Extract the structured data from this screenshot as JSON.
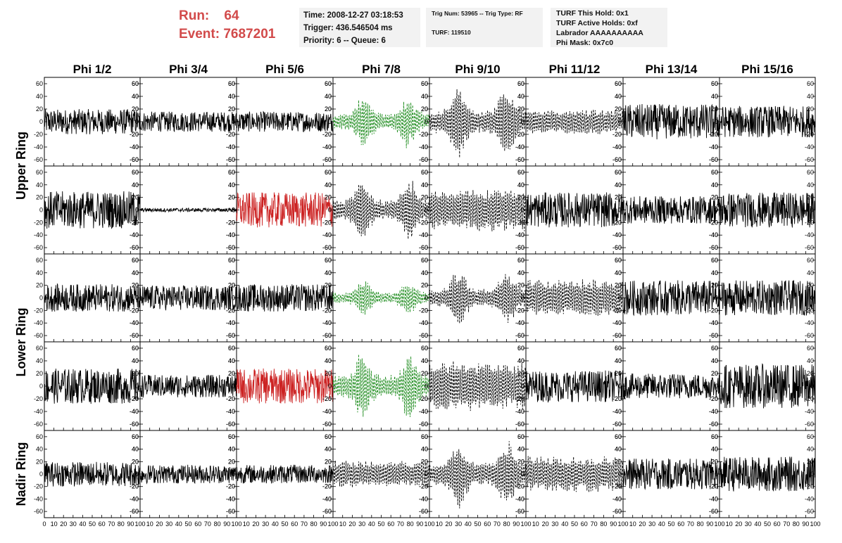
{
  "header": {
    "run_label": "Run:",
    "run_value": "64",
    "event_label": "Event:",
    "event_value": "7687201",
    "time": "Time: 2008-12-27 03:18:53",
    "trigger": "Trigger: 436.546504 ms",
    "priority": "Priority: 6 -- Queue: 6",
    "trig_num": "Trig Num: 53965 -- Trig Type: RF",
    "turf": "TURF: 119510",
    "turf_this_hold": "TURF This Hold: 0x1",
    "turf_active_holds": "TURF Active Holds: 0xf",
    "labrador": "Labrador AAAAAAAAAA",
    "phi_mask": "Phi Mask: 0x7c0"
  },
  "colors": {
    "header_red": "#d24a4a",
    "black_trace": "#000000",
    "red_trace": "#cc2222",
    "green_trace": "#1a8a1a",
    "box_bg": "#f2f2f2"
  },
  "chart_data": {
    "type": "line",
    "columns": [
      "Phi 1/2",
      "Phi 3/4",
      "Phi 5/6",
      "Phi 7/8",
      "Phi 9/10",
      "Phi 11/12",
      "Phi 13/14",
      "Phi 15/16"
    ],
    "row_labels": [
      {
        "label": "Upper Ring",
        "rows": [
          0,
          1
        ]
      },
      {
        "label": "Lower Ring",
        "rows": [
          2,
          3
        ]
      },
      {
        "label": "Nadir Ring",
        "rows": [
          4
        ]
      }
    ],
    "xlim": [
      0,
      100
    ],
    "ylim": [
      -70,
      70
    ],
    "yticks": [
      -60,
      -40,
      -20,
      0,
      20,
      40,
      60
    ],
    "xtick_labels": [
      [
        "0",
        "10",
        "20",
        "30",
        "40",
        "50",
        "60",
        "70",
        "80",
        "90",
        "100"
      ],
      [
        "10",
        "20",
        "30",
        "40",
        "50",
        "60",
        "70",
        "80",
        "90",
        "100"
      ],
      [
        "10",
        "20",
        "30",
        "40",
        "50",
        "60",
        "70",
        "80",
        "90",
        "100"
      ],
      [
        "10",
        "20",
        "30",
        "40",
        "50",
        "60",
        "70",
        "80",
        "90",
        "100"
      ],
      [
        "10",
        "20",
        "30",
        "40",
        "50",
        "60",
        "70",
        "80",
        "90",
        "100"
      ],
      [
        "10",
        "20",
        "30",
        "40",
        "50",
        "60",
        "70",
        "80",
        "90",
        "100"
      ],
      [
        "10",
        "20",
        "30",
        "40",
        "50",
        "60",
        "70",
        "80",
        "90",
        "100"
      ],
      [
        "10",
        "20",
        "30",
        "40",
        "50",
        "60",
        "70",
        "80",
        "90",
        "100"
      ]
    ],
    "panels": [
      [
        {
          "style": "solid",
          "color": "black",
          "amp": 20
        },
        {
          "style": "solid",
          "color": "black",
          "amp": 16
        },
        {
          "style": "solid",
          "color": "black",
          "amp": 16
        },
        {
          "style": "dashed",
          "color": "green",
          "amp": 45,
          "burst": [
            32,
            78
          ]
        },
        {
          "style": "dashed",
          "color": "black",
          "amp": 62,
          "burst": [
            30,
            80
          ]
        },
        {
          "style": "dashed",
          "color": "black",
          "amp": 20
        },
        {
          "style": "solid",
          "color": "black",
          "amp": 28
        },
        {
          "style": "solid",
          "color": "black",
          "amp": 25
        }
      ],
      [
        {
          "style": "solid",
          "color": "black",
          "amp": 30
        },
        {
          "style": "solid",
          "color": "black",
          "amp": 3
        },
        {
          "style": "solid",
          "color": "red",
          "amp": 28
        },
        {
          "style": "dashed",
          "color": "black",
          "amp": 55,
          "burst": [
            30,
            80
          ]
        },
        {
          "style": "dashed",
          "color": "black",
          "amp": 35
        },
        {
          "style": "solid",
          "color": "black",
          "amp": 28
        },
        {
          "style": "solid",
          "color": "black",
          "amp": 22
        },
        {
          "style": "solid",
          "color": "black",
          "amp": 28
        }
      ],
      [
        {
          "style": "solid",
          "color": "black",
          "amp": 22
        },
        {
          "style": "solid",
          "color": "black",
          "amp": 20
        },
        {
          "style": "solid",
          "color": "black",
          "amp": 22
        },
        {
          "style": "dashed",
          "color": "green",
          "amp": 30,
          "burst": [
            32,
            78
          ]
        },
        {
          "style": "dashed",
          "color": "black",
          "amp": 50,
          "burst": [
            30,
            80
          ]
        },
        {
          "style": "dashed",
          "color": "black",
          "amp": 30
        },
        {
          "style": "solid",
          "color": "black",
          "amp": 28
        },
        {
          "style": "solid",
          "color": "black",
          "amp": 28
        }
      ],
      [
        {
          "style": "solid",
          "color": "black",
          "amp": 28
        },
        {
          "style": "solid",
          "color": "black",
          "amp": 18
        },
        {
          "style": "solid",
          "color": "red",
          "amp": 28
        },
        {
          "style": "dashed",
          "color": "green",
          "amp": 60,
          "burst": [
            30,
            80
          ]
        },
        {
          "style": "dashed",
          "color": "black",
          "amp": 40
        },
        {
          "style": "solid",
          "color": "black",
          "amp": 25
        },
        {
          "style": "solid",
          "color": "black",
          "amp": 20
        },
        {
          "style": "solid",
          "color": "black",
          "amp": 35
        }
      ],
      [
        {
          "style": "solid",
          "color": "black",
          "amp": 20
        },
        {
          "style": "solid",
          "color": "black",
          "amp": 15
        },
        {
          "style": "solid",
          "color": "black",
          "amp": 15
        },
        {
          "style": "dashed",
          "color": "black",
          "amp": 22
        },
        {
          "style": "dashed",
          "color": "black",
          "amp": 60,
          "burst": [
            30,
            80
          ]
        },
        {
          "style": "dashed",
          "color": "black",
          "amp": 30
        },
        {
          "style": "solid",
          "color": "black",
          "amp": 25
        },
        {
          "style": "solid",
          "color": "black",
          "amp": 28
        }
      ]
    ]
  }
}
